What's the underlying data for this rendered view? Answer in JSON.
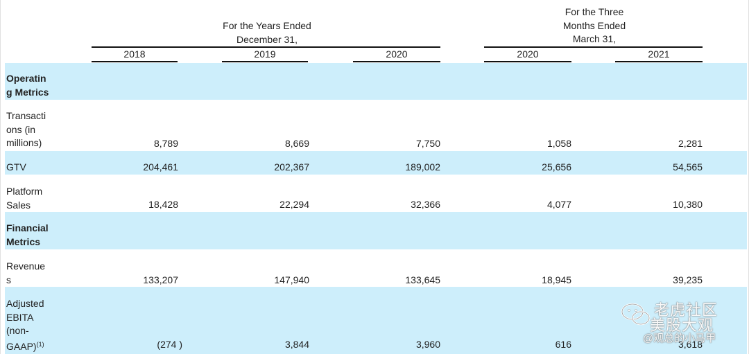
{
  "header": {
    "years_ended": "For the Years Ended December 31,",
    "years_ended_line1": "For the Years Ended",
    "years_ended_line2": "December 31,",
    "three_months_line1": "For the Three",
    "three_months_line2": "Months Ended",
    "three_months_line3": "March 31,",
    "columns": [
      "2018",
      "2019",
      "2020",
      "2020",
      "2021"
    ]
  },
  "sections": {
    "operating": [
      "Operatin",
      "g Metrics"
    ],
    "financial": [
      "Financial",
      "Metrics"
    ]
  },
  "rows": {
    "transactions": {
      "label": [
        "Transacti",
        "ons (in",
        "millions)"
      ],
      "values": [
        "8,789",
        "8,669",
        "7,750",
        "1,058",
        "2,281"
      ]
    },
    "gtv": {
      "label": [
        "GTV"
      ],
      "values": [
        "204,461",
        "202,367",
        "189,002",
        "25,656",
        "54,565"
      ]
    },
    "platform_sales": {
      "label": [
        "Platform",
        "Sales"
      ],
      "values": [
        "18,428",
        "22,294",
        "32,366",
        "4,077",
        "10,380"
      ]
    },
    "revenues": {
      "label": [
        "Revenue",
        "s"
      ],
      "values": [
        "133,207",
        "147,940",
        "133,645",
        "18,945",
        "39,235"
      ]
    },
    "adjusted_ebita": {
      "label": [
        "Adjusted",
        "EBITA",
        "(non-",
        "GAAP)"
      ],
      "footnote": "(1)",
      "values": [
        "(274 )",
        "3,844",
        "3,960",
        "616",
        "3,618"
      ]
    }
  },
  "watermark": {
    "line1": "老虎社区",
    "line2": "美股大观",
    "line3": "@观总的小马甲"
  },
  "colors": {
    "band": "#cdeefb",
    "rule": "#111111"
  }
}
